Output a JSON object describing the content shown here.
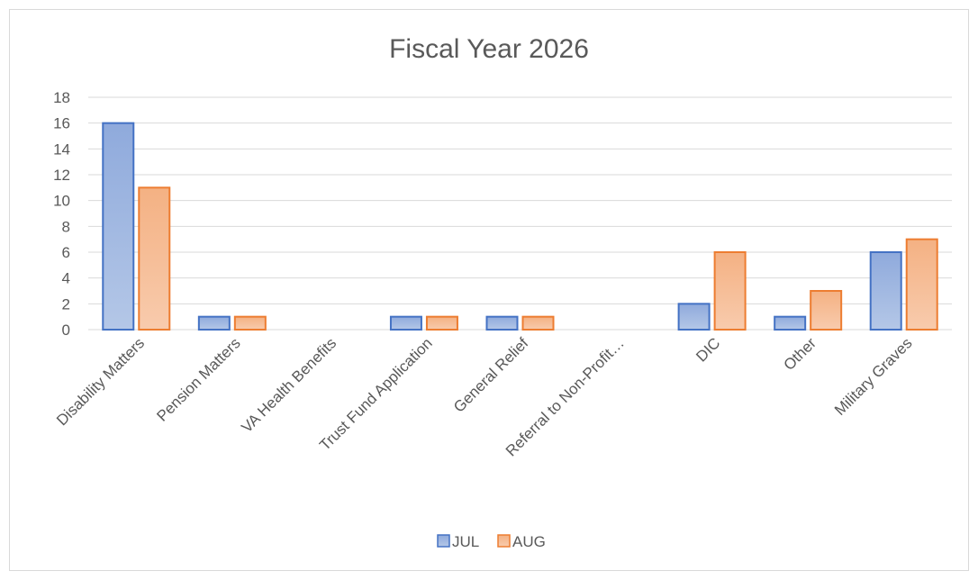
{
  "chart_data": {
    "type": "bar",
    "title": "Fiscal Year 2026",
    "categories": [
      "Disability Matters",
      "Pension Matters",
      "VA Health Benefits",
      "Trust Fund Application",
      "General Relief",
      "Referral to Non-Profit…",
      "DIC",
      "Other",
      "Military Graves"
    ],
    "series": [
      {
        "name": "JUL",
        "values": [
          16,
          1,
          0,
          1,
          1,
          0,
          2,
          1,
          6
        ],
        "color": "#4472c4"
      },
      {
        "name": "AUG",
        "values": [
          11,
          1,
          0,
          1,
          1,
          0,
          6,
          3,
          7
        ],
        "color": "#ed7d31"
      }
    ],
    "yticks": [
      "0",
      "2",
      "4",
      "6",
      "8",
      "10",
      "12",
      "14",
      "16",
      "18"
    ],
    "ylim": [
      0,
      18
    ],
    "grid": true,
    "legend": "bottom"
  }
}
